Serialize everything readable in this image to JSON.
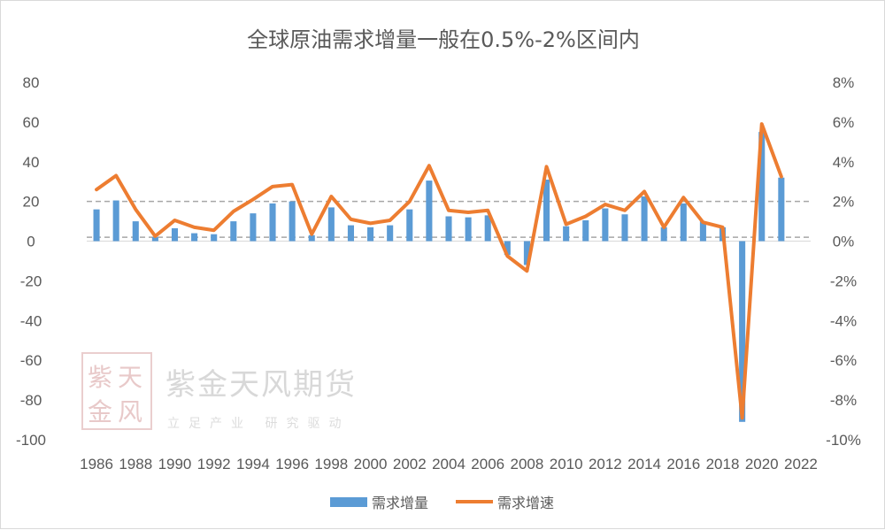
{
  "chart_data": {
    "type": "bar+line",
    "title": "全球原油需求增量一般在0.5%-2%区间内",
    "categories": [
      "1986",
      "1987",
      "1988",
      "1989",
      "1990",
      "1991",
      "1992",
      "1993",
      "1994",
      "1995",
      "1996",
      "1997",
      "1998",
      "1999",
      "2000",
      "2001",
      "2002",
      "2003",
      "2004",
      "2005",
      "2006",
      "2007",
      "2008",
      "2009",
      "2010",
      "2011",
      "2012",
      "2013",
      "2014",
      "2015",
      "2016",
      "2017",
      "2018",
      "2019",
      "2020",
      "2021",
      "2022"
    ],
    "x_tick_labels": [
      "1986",
      "1988",
      "1990",
      "1992",
      "1994",
      "1996",
      "1998",
      "2000",
      "2002",
      "2004",
      "2006",
      "2008",
      "2010",
      "2012",
      "2014",
      "2016",
      "2018",
      "2020",
      "2022"
    ],
    "series": [
      {
        "name": "需求增量",
        "type": "bar",
        "axis": "left",
        "color": "#5b9bd5",
        "values": [
          16,
          20.5,
          10,
          2,
          6.5,
          4,
          3.5,
          10,
          14,
          19,
          20,
          3,
          17,
          8,
          7,
          8,
          16,
          30.5,
          12.5,
          12,
          13,
          -7,
          -12,
          31,
          7.5,
          10.5,
          16.5,
          13.5,
          22.5,
          7,
          19,
          10,
          7,
          -91,
          55,
          32,
          null
        ]
      },
      {
        "name": "需求增速",
        "type": "line",
        "axis": "right",
        "color": "#ed7d31",
        "values": [
          2.6,
          3.3,
          1.6,
          0.25,
          1.05,
          0.7,
          0.55,
          1.5,
          2.1,
          2.75,
          2.85,
          0.35,
          2.25,
          1.1,
          0.9,
          1.05,
          2.0,
          3.8,
          1.55,
          1.45,
          1.55,
          -0.75,
          -1.5,
          3.75,
          0.85,
          1.25,
          1.85,
          1.55,
          2.5,
          0.7,
          2.2,
          0.95,
          0.7,
          -8.9,
          5.9,
          3.25,
          null
        ]
      }
    ],
    "left_axis": {
      "min": -100,
      "max": 80,
      "step": 20,
      "tick_labels": [
        "80",
        "60",
        "40",
        "20",
        "0",
        "-20",
        "-40",
        "-60",
        "-80",
        "-100"
      ]
    },
    "right_axis": {
      "min": -10,
      "max": 8,
      "step": 2,
      "tick_labels": [
        "8%",
        "6%",
        "4%",
        "2%",
        "0%",
        "-2%",
        "-4%",
        "-6%",
        "-8%",
        "-10%"
      ]
    },
    "reference_lines_pct": [
      2,
      0.2
    ],
    "grid": false,
    "legend_position": "bottom"
  },
  "watermark": {
    "seal": [
      "紫",
      "天",
      "金",
      "风"
    ],
    "name": "紫金天风期货",
    "tagline": "立足产业 研究驱动"
  }
}
